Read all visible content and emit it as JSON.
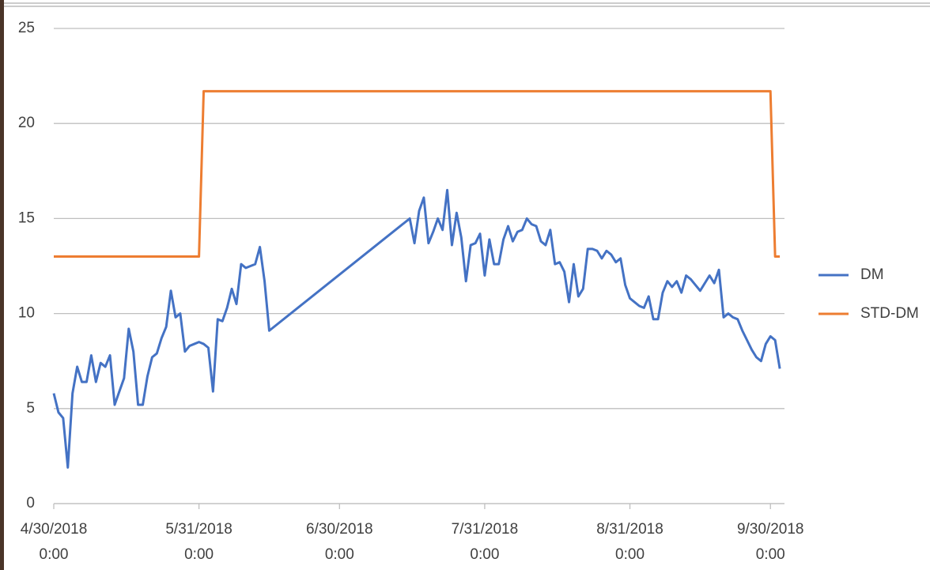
{
  "chart_data": {
    "type": "line",
    "x": [
      "2018-04-30",
      "2018-05-01",
      "2018-05-02",
      "2018-05-03",
      "2018-05-04",
      "2018-05-05",
      "2018-05-06",
      "2018-05-07",
      "2018-05-08",
      "2018-05-09",
      "2018-05-10",
      "2018-05-11",
      "2018-05-12",
      "2018-05-13",
      "2018-05-14",
      "2018-05-15",
      "2018-05-16",
      "2018-05-17",
      "2018-05-18",
      "2018-05-19",
      "2018-05-20",
      "2018-05-21",
      "2018-05-22",
      "2018-05-23",
      "2018-05-24",
      "2018-05-25",
      "2018-05-26",
      "2018-05-27",
      "2018-05-28",
      "2018-05-29",
      "2018-05-30",
      "2018-05-31",
      "2018-06-01",
      "2018-06-02",
      "2018-06-03",
      "2018-06-04",
      "2018-06-05",
      "2018-06-06",
      "2018-06-07",
      "2018-06-08",
      "2018-06-09",
      "2018-06-10",
      "2018-06-11",
      "2018-06-12",
      "2018-06-13",
      "2018-06-14",
      "2018-06-15",
      "2018-07-15",
      "2018-07-16",
      "2018-07-17",
      "2018-07-18",
      "2018-07-19",
      "2018-07-20",
      "2018-07-21",
      "2018-07-22",
      "2018-07-23",
      "2018-07-24",
      "2018-07-25",
      "2018-07-26",
      "2018-07-27",
      "2018-07-28",
      "2018-07-29",
      "2018-07-30",
      "2018-07-31",
      "2018-08-01",
      "2018-08-02",
      "2018-08-03",
      "2018-08-04",
      "2018-08-05",
      "2018-08-06",
      "2018-08-07",
      "2018-08-08",
      "2018-08-09",
      "2018-08-10",
      "2018-08-11",
      "2018-08-12",
      "2018-08-13",
      "2018-08-14",
      "2018-08-15",
      "2018-08-16",
      "2018-08-17",
      "2018-08-18",
      "2018-08-19",
      "2018-08-20",
      "2018-08-21",
      "2018-08-22",
      "2018-08-23",
      "2018-08-24",
      "2018-08-25",
      "2018-08-26",
      "2018-08-27",
      "2018-08-28",
      "2018-08-29",
      "2018-08-30",
      "2018-08-31",
      "2018-09-01",
      "2018-09-02",
      "2018-09-03",
      "2018-09-04",
      "2018-09-05",
      "2018-09-06",
      "2018-09-07",
      "2018-09-08",
      "2018-09-09",
      "2018-09-10",
      "2018-09-11",
      "2018-09-12",
      "2018-09-13",
      "2018-09-14",
      "2018-09-15",
      "2018-09-16",
      "2018-09-17",
      "2018-09-18",
      "2018-09-19",
      "2018-09-20",
      "2018-09-21",
      "2018-09-22",
      "2018-09-23",
      "2018-09-24",
      "2018-09-25",
      "2018-09-26",
      "2018-09-27",
      "2018-09-28",
      "2018-09-29",
      "2018-09-30",
      "2018-10-01",
      "2018-10-02"
    ],
    "series": [
      {
        "name": "DM",
        "color": "#4472c4",
        "values": [
          5.8,
          4.8,
          4.5,
          1.9,
          5.8,
          7.2,
          6.4,
          6.4,
          7.8,
          6.4,
          7.4,
          7.2,
          7.8,
          5.2,
          5.9,
          6.6,
          9.2,
          8.0,
          5.2,
          5.2,
          6.7,
          7.7,
          7.9,
          8.7,
          9.3,
          11.2,
          9.8,
          10.0,
          8.0,
          8.3,
          8.4,
          8.5,
          8.4,
          8.2,
          5.9,
          9.7,
          9.6,
          10.3,
          11.3,
          10.5,
          12.6,
          12.4,
          12.5,
          12.6,
          13.5,
          11.7,
          9.1,
          15.0,
          13.7,
          15.4,
          16.1,
          13.7,
          14.3,
          15.0,
          14.4,
          16.5,
          13.6,
          15.3,
          14.0,
          11.7,
          13.6,
          13.7,
          14.2,
          12.0,
          13.9,
          12.6,
          12.6,
          13.9,
          14.6,
          13.8,
          14.3,
          14.4,
          15.0,
          14.7,
          14.6,
          13.8,
          13.6,
          14.4,
          12.6,
          12.7,
          12.2,
          10.6,
          12.6,
          10.9,
          11.3,
          13.4,
          13.4,
          13.3,
          12.9,
          13.3,
          13.1,
          12.7,
          12.9,
          11.5,
          10.8,
          10.6,
          10.4,
          10.3,
          10.9,
          9.7,
          9.7,
          11.1,
          11.7,
          11.4,
          11.7,
          11.1,
          12.0,
          11.8,
          11.5,
          11.2,
          11.6,
          12.0,
          11.6,
          12.3,
          9.8,
          10.0,
          9.8,
          9.7,
          9.1,
          8.6,
          8.1,
          7.7,
          7.5,
          8.4,
          8.8,
          8.6,
          7.1
        ]
      },
      {
        "name": "STD-DM",
        "color": "#ed7d31",
        "values": [
          13,
          13,
          13,
          13,
          13,
          13,
          13,
          13,
          13,
          13,
          13,
          13,
          13,
          13,
          13,
          13,
          13,
          13,
          13,
          13,
          13,
          13,
          13,
          13,
          13,
          13,
          13,
          13,
          13,
          13,
          13,
          13,
          21.7,
          21.7,
          21.7,
          21.7,
          21.7,
          21.7,
          21.7,
          21.7,
          21.7,
          21.7,
          21.7,
          21.7,
          21.7,
          21.7,
          21.7,
          21.7,
          21.7,
          21.7,
          21.7,
          21.7,
          21.7,
          21.7,
          21.7,
          21.7,
          21.7,
          21.7,
          21.7,
          21.7,
          21.7,
          21.7,
          21.7,
          21.7,
          21.7,
          21.7,
          21.7,
          21.7,
          21.7,
          21.7,
          21.7,
          21.7,
          21.7,
          21.7,
          21.7,
          21.7,
          21.7,
          21.7,
          21.7,
          21.7,
          21.7,
          21.7,
          21.7,
          21.7,
          21.7,
          21.7,
          21.7,
          21.7,
          21.7,
          21.7,
          21.7,
          21.7,
          21.7,
          21.7,
          21.7,
          21.7,
          21.7,
          21.7,
          21.7,
          21.7,
          21.7,
          21.7,
          21.7,
          21.7,
          21.7,
          21.7,
          21.7,
          21.7,
          21.7,
          21.7,
          21.7,
          21.7,
          21.7,
          21.7,
          21.7,
          21.7,
          21.7,
          21.7,
          21.7,
          21.7,
          21.7,
          21.7,
          21.7,
          21.7,
          21.7,
          13,
          13
        ]
      }
    ],
    "xlim": [
      "2018-04-30",
      "2018-10-03"
    ],
    "xticks": [
      {
        "value": "2018-04-30",
        "label": "4/30/2018 0:00"
      },
      {
        "value": "2018-05-31",
        "label": "5/31/2018 0:00"
      },
      {
        "value": "2018-06-30",
        "label": "6/30/2018 0:00"
      },
      {
        "value": "2018-07-31",
        "label": "7/31/2018 0:00"
      },
      {
        "value": "2018-08-31",
        "label": "8/31/2018 0:00"
      },
      {
        "value": "2018-09-30",
        "label": "9/30/2018 0:00"
      }
    ],
    "ylim": [
      0,
      25
    ],
    "yticks": [
      0,
      5,
      10,
      15,
      20,
      25
    ],
    "grid": true,
    "legend": "right"
  }
}
